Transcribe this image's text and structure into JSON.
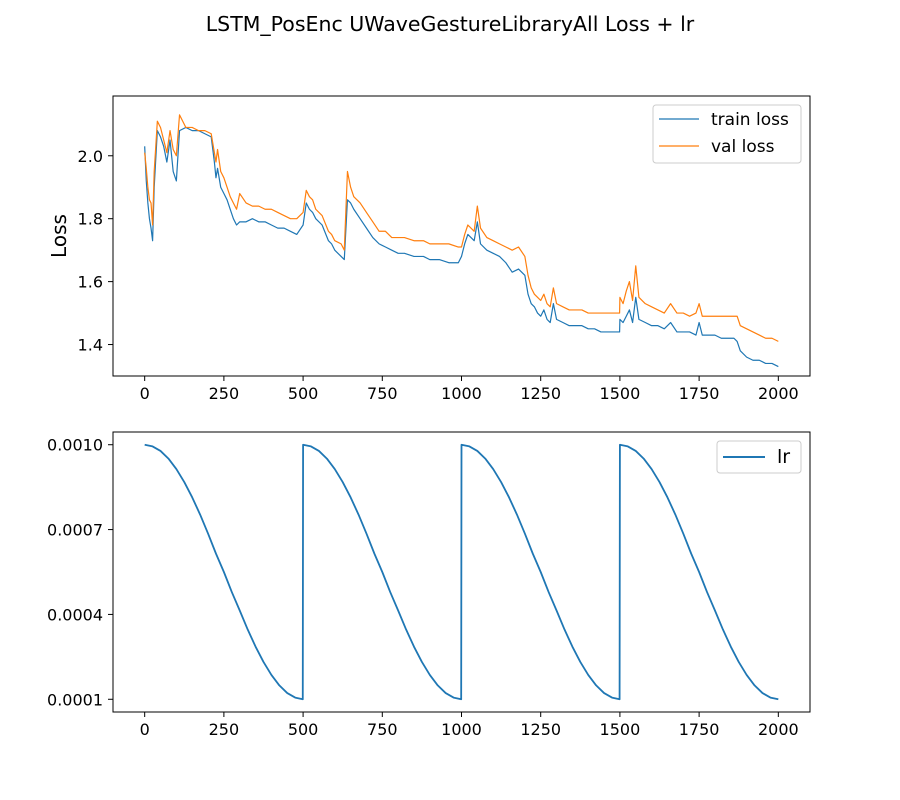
{
  "figure": {
    "title": "LSTM_PosEnc UWaveGestureLibraryAll Loss + lr"
  },
  "chart_data": [
    {
      "type": "line",
      "title": "",
      "xlabel": "",
      "ylabel": "Loss",
      "xlim": [
        -100,
        2100
      ],
      "ylim": [
        1.3,
        2.19
      ],
      "xticks": [
        0,
        250,
        500,
        750,
        1000,
        1250,
        1500,
        1750,
        2000
      ],
      "yticks": [
        1.4,
        1.6,
        1.8,
        2.0
      ],
      "ytick_labels": [
        "1.4",
        "1.6",
        "1.8",
        "2.0"
      ],
      "grid": false,
      "legend_position": "top-right",
      "series": [
        {
          "name": "train loss",
          "color": "#1f77b4",
          "x": [
            0,
            5,
            10,
            15,
            20,
            25,
            30,
            40,
            50,
            60,
            70,
            80,
            90,
            100,
            110,
            130,
            150,
            170,
            190,
            210,
            220,
            225,
            230,
            240,
            250,
            260,
            270,
            280,
            290,
            300,
            320,
            340,
            360,
            380,
            400,
            420,
            440,
            460,
            480,
            500,
            510,
            520,
            530,
            540,
            560,
            580,
            590,
            600,
            620,
            630,
            640,
            650,
            660,
            680,
            700,
            720,
            740,
            760,
            780,
            800,
            820,
            850,
            880,
            900,
            930,
            960,
            990,
            1000,
            1010,
            1020,
            1040,
            1050,
            1060,
            1080,
            1100,
            1120,
            1140,
            1160,
            1180,
            1200,
            1210,
            1220,
            1230,
            1240,
            1250,
            1260,
            1270,
            1280,
            1290,
            1300,
            1320,
            1340,
            1360,
            1380,
            1400,
            1420,
            1440,
            1460,
            1480,
            1499,
            1500,
            1510,
            1520,
            1530,
            1540,
            1550,
            1560,
            1580,
            1600,
            1620,
            1640,
            1660,
            1680,
            1700,
            1720,
            1740,
            1750,
            1760,
            1780,
            1800,
            1820,
            1840,
            1860,
            1870,
            1880,
            1900,
            1920,
            1940,
            1960,
            1980,
            2000
          ],
          "y": [
            2.03,
            1.92,
            1.85,
            1.8,
            1.77,
            1.73,
            1.9,
            2.08,
            2.06,
            2.03,
            1.98,
            2.05,
            1.95,
            1.92,
            2.08,
            2.09,
            2.08,
            2.08,
            2.07,
            2.06,
            1.98,
            1.93,
            1.96,
            1.9,
            1.88,
            1.86,
            1.83,
            1.8,
            1.78,
            1.79,
            1.79,
            1.8,
            1.79,
            1.79,
            1.78,
            1.77,
            1.77,
            1.76,
            1.75,
            1.78,
            1.85,
            1.83,
            1.82,
            1.8,
            1.78,
            1.73,
            1.72,
            1.7,
            1.68,
            1.67,
            1.86,
            1.85,
            1.83,
            1.8,
            1.77,
            1.74,
            1.72,
            1.71,
            1.7,
            1.69,
            1.69,
            1.68,
            1.68,
            1.67,
            1.67,
            1.66,
            1.66,
            1.68,
            1.72,
            1.75,
            1.73,
            1.79,
            1.72,
            1.7,
            1.69,
            1.68,
            1.66,
            1.63,
            1.64,
            1.62,
            1.56,
            1.53,
            1.52,
            1.5,
            1.49,
            1.51,
            1.48,
            1.47,
            1.53,
            1.48,
            1.47,
            1.46,
            1.46,
            1.46,
            1.45,
            1.45,
            1.44,
            1.44,
            1.44,
            1.44,
            1.48,
            1.47,
            1.49,
            1.51,
            1.47,
            1.55,
            1.48,
            1.47,
            1.46,
            1.46,
            1.45,
            1.47,
            1.44,
            1.44,
            1.44,
            1.43,
            1.47,
            1.43,
            1.43,
            1.43,
            1.42,
            1.42,
            1.42,
            1.41,
            1.38,
            1.36,
            1.35,
            1.35,
            1.34,
            1.34,
            1.33
          ]
        },
        {
          "name": "val loss",
          "color": "#ff7f0e",
          "x": [
            0,
            5,
            10,
            15,
            20,
            25,
            30,
            40,
            50,
            60,
            70,
            80,
            90,
            100,
            110,
            130,
            150,
            170,
            190,
            210,
            220,
            225,
            230,
            240,
            250,
            260,
            270,
            280,
            290,
            300,
            320,
            340,
            360,
            380,
            400,
            420,
            440,
            460,
            480,
            500,
            510,
            520,
            530,
            540,
            560,
            580,
            590,
            600,
            620,
            630,
            640,
            650,
            660,
            680,
            700,
            720,
            740,
            760,
            780,
            800,
            820,
            850,
            880,
            900,
            930,
            960,
            990,
            1000,
            1010,
            1020,
            1040,
            1050,
            1060,
            1080,
            1100,
            1120,
            1140,
            1160,
            1180,
            1200,
            1210,
            1220,
            1230,
            1240,
            1250,
            1260,
            1270,
            1280,
            1290,
            1300,
            1320,
            1340,
            1360,
            1380,
            1400,
            1420,
            1440,
            1460,
            1480,
            1499,
            1500,
            1510,
            1520,
            1530,
            1540,
            1550,
            1560,
            1580,
            1600,
            1620,
            1640,
            1660,
            1680,
            1700,
            1720,
            1740,
            1750,
            1760,
            1780,
            1800,
            1820,
            1840,
            1860,
            1870,
            1880,
            1900,
            1920,
            1940,
            1960,
            1980,
            2000
          ],
          "y": [
            2.01,
            1.96,
            1.9,
            1.86,
            1.85,
            1.78,
            1.95,
            2.11,
            2.09,
            2.05,
            2.01,
            2.08,
            2.02,
            2.0,
            2.13,
            2.09,
            2.09,
            2.08,
            2.08,
            2.07,
            2.01,
            1.98,
            2.02,
            1.95,
            1.93,
            1.9,
            1.87,
            1.85,
            1.83,
            1.88,
            1.85,
            1.84,
            1.84,
            1.83,
            1.83,
            1.82,
            1.81,
            1.8,
            1.8,
            1.82,
            1.89,
            1.87,
            1.86,
            1.83,
            1.81,
            1.76,
            1.75,
            1.73,
            1.72,
            1.7,
            1.95,
            1.9,
            1.87,
            1.85,
            1.82,
            1.79,
            1.76,
            1.76,
            1.74,
            1.74,
            1.74,
            1.73,
            1.73,
            1.72,
            1.72,
            1.72,
            1.71,
            1.71,
            1.75,
            1.78,
            1.76,
            1.84,
            1.77,
            1.74,
            1.73,
            1.72,
            1.71,
            1.7,
            1.71,
            1.68,
            1.62,
            1.58,
            1.56,
            1.55,
            1.54,
            1.56,
            1.53,
            1.52,
            1.58,
            1.53,
            1.52,
            1.51,
            1.51,
            1.51,
            1.5,
            1.5,
            1.5,
            1.5,
            1.5,
            1.5,
            1.55,
            1.53,
            1.57,
            1.6,
            1.54,
            1.65,
            1.55,
            1.53,
            1.52,
            1.51,
            1.5,
            1.53,
            1.5,
            1.5,
            1.49,
            1.5,
            1.53,
            1.49,
            1.49,
            1.49,
            1.49,
            1.49,
            1.49,
            1.49,
            1.46,
            1.45,
            1.44,
            1.43,
            1.42,
            1.42,
            1.41
          ]
        }
      ]
    },
    {
      "type": "line",
      "title": "",
      "xlabel": "",
      "ylabel": "",
      "xlim": [
        -100,
        2100
      ],
      "ylim": [
        5.5e-05,
        0.001045
      ],
      "xticks": [
        0,
        250,
        500,
        750,
        1000,
        1250,
        1500,
        1750,
        2000
      ],
      "yticks": [
        0.0001,
        0.0004,
        0.0007,
        0.001
      ],
      "ytick_labels": [
        "0.0001",
        "0.0004",
        "0.0007",
        "0.0010"
      ],
      "grid": false,
      "legend_position": "top-right",
      "series": [
        {
          "name": "lr",
          "color": "#1f77b4",
          "x": [
            0,
            25,
            50,
            75,
            100,
            125,
            150,
            175,
            200,
            225,
            250,
            275,
            300,
            325,
            350,
            375,
            400,
            425,
            450,
            475,
            499,
            500,
            525,
            550,
            575,
            600,
            625,
            650,
            675,
            700,
            725,
            750,
            775,
            800,
            825,
            850,
            875,
            900,
            925,
            950,
            975,
            999,
            1000,
            1025,
            1050,
            1075,
            1100,
            1125,
            1150,
            1175,
            1200,
            1225,
            1250,
            1275,
            1300,
            1325,
            1350,
            1375,
            1400,
            1425,
            1450,
            1475,
            1499,
            1500,
            1525,
            1550,
            1575,
            1600,
            1625,
            1650,
            1675,
            1700,
            1725,
            1750,
            1775,
            1800,
            1825,
            1850,
            1875,
            1900,
            1925,
            1950,
            1975,
            2000
          ],
          "y": [
            0.001,
            0.000994,
            0.000978,
            0.000951,
            0.000914,
            0.000868,
            0.000814,
            0.000753,
            0.000686,
            0.000615,
            0.00055,
            0.000479,
            0.000414,
            0.000347,
            0.000286,
            0.000232,
            0.000186,
            0.000149,
            0.000122,
            0.000106,
            0.0001,
            0.001,
            0.000994,
            0.000978,
            0.000951,
            0.000914,
            0.000868,
            0.000814,
            0.000753,
            0.000686,
            0.000615,
            0.00055,
            0.000479,
            0.000414,
            0.000347,
            0.000286,
            0.000232,
            0.000186,
            0.000149,
            0.000122,
            0.000106,
            0.0001,
            0.001,
            0.000994,
            0.000978,
            0.000951,
            0.000914,
            0.000868,
            0.000814,
            0.000753,
            0.000686,
            0.000615,
            0.00055,
            0.000479,
            0.000414,
            0.000347,
            0.000286,
            0.000232,
            0.000186,
            0.000149,
            0.000122,
            0.000106,
            0.0001,
            0.001,
            0.000994,
            0.000978,
            0.000951,
            0.000914,
            0.000868,
            0.000814,
            0.000753,
            0.000686,
            0.000615,
            0.00055,
            0.000479,
            0.000414,
            0.000347,
            0.000286,
            0.000232,
            0.000186,
            0.000149,
            0.000122,
            0.000106,
            0.0001
          ]
        }
      ]
    }
  ]
}
